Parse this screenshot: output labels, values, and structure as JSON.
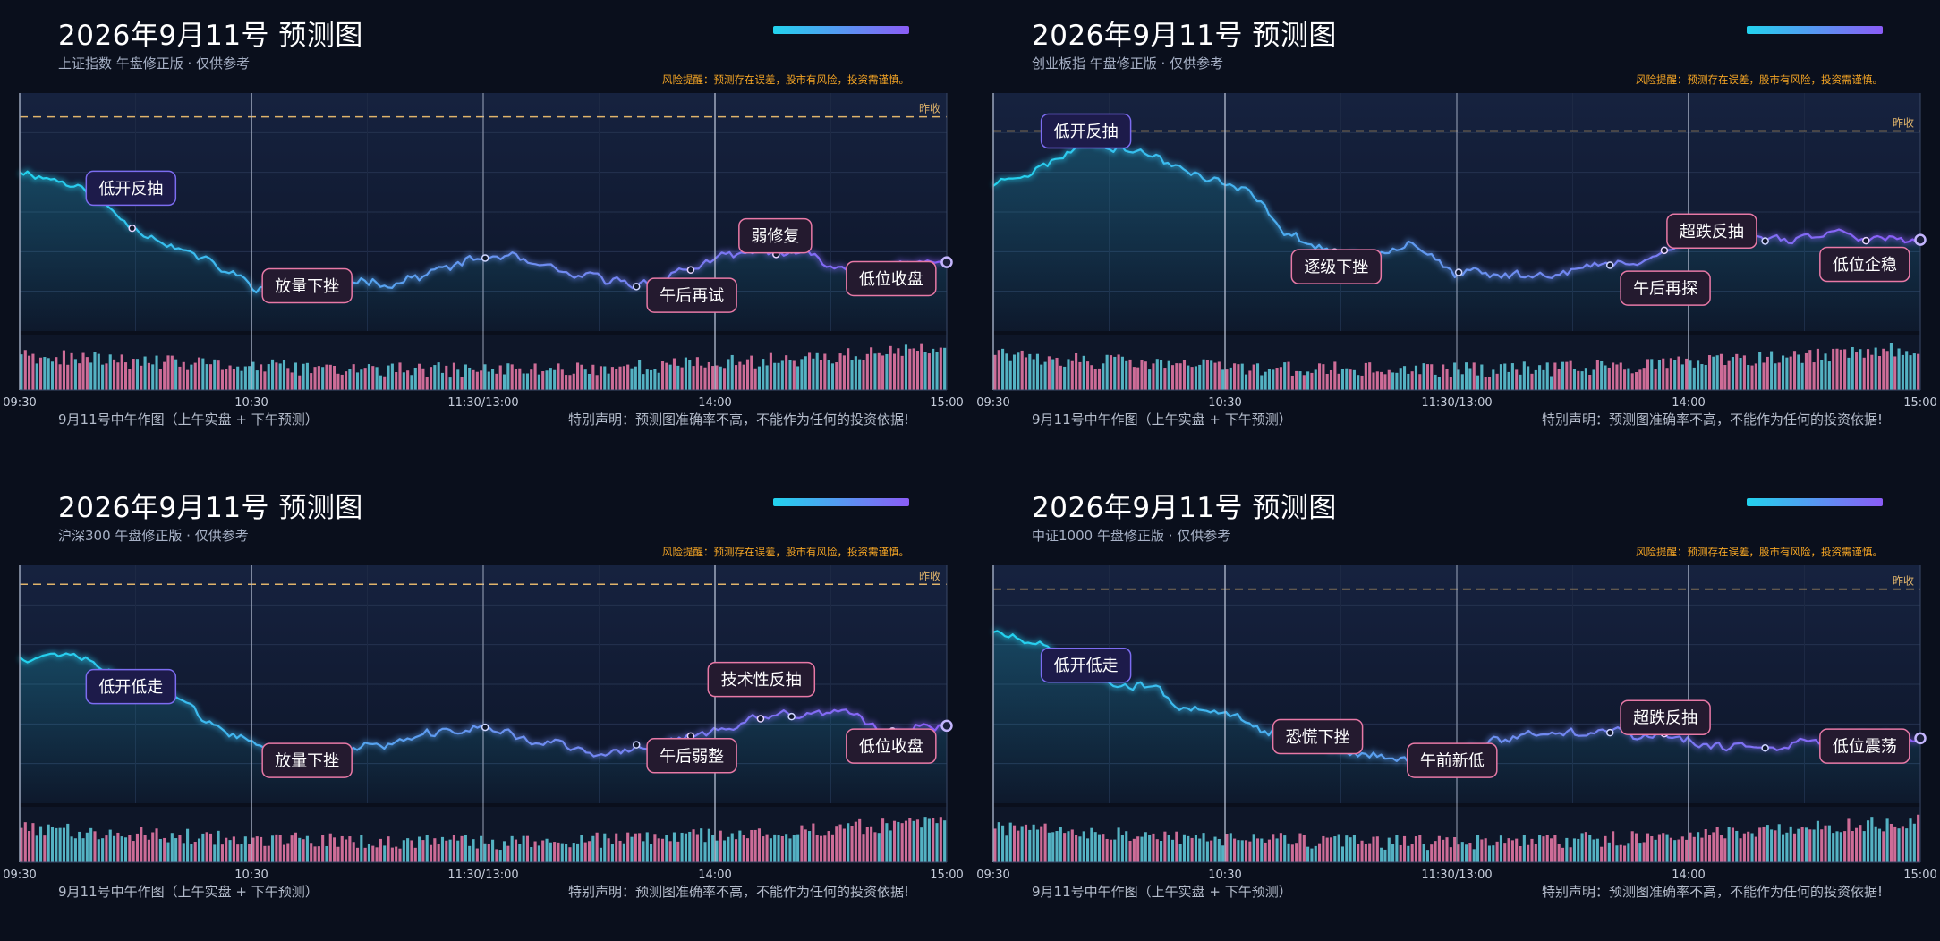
{
  "accent": "#22d3ee",
  "accent2": "#8b5cf6",
  "up_color": "#e879a6",
  "down_color": "#5ec8d8",
  "chart_data": [
    {
      "type": "line",
      "title": "2026年9月11号 预测图",
      "subtitle": "上证指数 午盘修正版 · 仅供参考",
      "risk": "风险提醒：预测存在误差，股市有风险，投资需谨慎。",
      "footer_left": "9月11号中午作图（上午实盘 + 下午预测）",
      "footer_right": "特别声明：预测图准确率不高，不能作为任何的投资依据!",
      "ref_label": "昨收",
      "x_ticks": [
        "09:30",
        "10:30",
        "11:30/13:00",
        "14:00",
        "15:00"
      ],
      "y_range": [
        0,
        100
      ],
      "ref_value": 90,
      "seed": 11,
      "anchors": [
        [
          0,
          68
        ],
        [
          0.06,
          62
        ],
        [
          0.12,
          45
        ],
        [
          0.2,
          30
        ],
        [
          0.25,
          20
        ],
        [
          0.32,
          22
        ],
        [
          0.4,
          21
        ],
        [
          0.5,
          30
        ],
        [
          0.53,
          31
        ],
        [
          0.6,
          22
        ],
        [
          0.68,
          20
        ],
        [
          0.75,
          30
        ],
        [
          0.82,
          33
        ],
        [
          0.9,
          27
        ],
        [
          1,
          29
        ]
      ],
      "annotations": [
        {
          "text": "低开反抽",
          "x": 0.12,
          "y": 60,
          "boxSide": "above",
          "type": "purple"
        },
        {
          "text": "放量下挫",
          "x": 0.31,
          "y": 19,
          "boxSide": "below",
          "type": "pink"
        },
        {
          "text": "弱修复",
          "x": 0.815,
          "y": 40,
          "boxSide": "above",
          "type": "pink"
        },
        {
          "text": "午后再试",
          "x": 0.725,
          "y": 15,
          "boxSide": "below",
          "type": "pink"
        },
        {
          "text": "低位收盘",
          "x": 0.94,
          "y": 22,
          "boxSide": "below",
          "type": "pink"
        }
      ]
    },
    {
      "type": "line",
      "title": "2026年9月11号 预测图",
      "subtitle": "创业板指 午盘修正版 · 仅供参考",
      "risk": "风险提醒：预测存在误差，股市有风险，投资需谨慎。",
      "footer_left": "9月11号中午作图（上午实盘 + 下午预测）",
      "footer_right": "特别声明：预测图准确率不高，不能作为任何的投资依据!",
      "ref_label": "昨收",
      "x_ticks": [
        "09:30",
        "10:30",
        "11:30/13:00",
        "14:00",
        "15:00"
      ],
      "y_range": [
        0,
        100
      ],
      "ref_value": 84,
      "seed": 23,
      "anchors": [
        [
          0,
          62
        ],
        [
          0.05,
          68
        ],
        [
          0.1,
          80
        ],
        [
          0.14,
          78
        ],
        [
          0.2,
          68
        ],
        [
          0.27,
          58
        ],
        [
          0.32,
          40
        ],
        [
          0.4,
          28
        ],
        [
          0.45,
          40
        ],
        [
          0.5,
          25
        ],
        [
          0.6,
          24
        ],
        [
          0.68,
          28
        ],
        [
          0.76,
          40
        ],
        [
          0.85,
          40
        ],
        [
          0.92,
          42
        ],
        [
          1,
          36
        ]
      ],
      "annotations": [
        {
          "text": "低开反抽",
          "x": 0.1,
          "y": 84,
          "boxSide": "above",
          "type": "purple"
        },
        {
          "text": "逐级下挫",
          "x": 0.37,
          "y": 27,
          "boxSide": "below",
          "type": "pink"
        },
        {
          "text": "超跌反抽",
          "x": 0.775,
          "y": 42,
          "boxSide": "above",
          "type": "pink"
        },
        {
          "text": "午后再探",
          "x": 0.725,
          "y": 18,
          "boxSide": "below",
          "type": "pink"
        },
        {
          "text": "低位企稳",
          "x": 0.94,
          "y": 28,
          "boxSide": "below",
          "type": "pink"
        }
      ]
    },
    {
      "type": "line",
      "title": "2026年9月11号 预测图",
      "subtitle": "沪深300 午盘修正版 · 仅供参考",
      "risk": "风险提醒：预测存在误差，股市有风险，投资需谨慎。",
      "footer_left": "9月11号中午作图（上午实盘 + 下午预测）",
      "footer_right": "特别声明：预测图准确率不高，不能作为任何的投资依据!",
      "ref_label": "昨收",
      "x_ticks": [
        "09:30",
        "10:30",
        "11:30/13:00",
        "14:00",
        "15:00"
      ],
      "y_range": [
        0,
        100
      ],
      "ref_value": 92,
      "seed": 37,
      "anchors": [
        [
          0,
          62
        ],
        [
          0.05,
          64
        ],
        [
          0.12,
          50
        ],
        [
          0.17,
          45
        ],
        [
          0.22,
          28
        ],
        [
          0.27,
          22
        ],
        [
          0.33,
          20
        ],
        [
          0.4,
          26
        ],
        [
          0.5,
          32
        ],
        [
          0.58,
          25
        ],
        [
          0.62,
          20
        ],
        [
          0.7,
          26
        ],
        [
          0.76,
          30
        ],
        [
          0.82,
          36
        ],
        [
          0.9,
          37
        ],
        [
          0.93,
          28
        ],
        [
          0.97,
          34
        ],
        [
          1,
          34
        ]
      ],
      "annotations": [
        {
          "text": "低开低走",
          "x": 0.12,
          "y": 49,
          "boxSide": "above",
          "type": "purple"
        },
        {
          "text": "放量下挫",
          "x": 0.31,
          "y": 18,
          "boxSide": "below",
          "type": "pink"
        },
        {
          "text": "技术性反抽",
          "x": 0.8,
          "y": 52,
          "boxSide": "above",
          "type": "pink"
        },
        {
          "text": "午后弱整",
          "x": 0.725,
          "y": 20,
          "boxSide": "below",
          "type": "pink"
        },
        {
          "text": "低位收盘",
          "x": 0.94,
          "y": 24,
          "boxSide": "below",
          "type": "pink"
        }
      ]
    },
    {
      "type": "line",
      "title": "2026年9月11号 预测图",
      "subtitle": "中证1000 午盘修正版 · 仅供参考",
      "risk": "风险提醒：预测存在误差，股市有风险，投资需谨慎。",
      "footer_left": "9月11号中午作图（上午实盘 + 下午预测）",
      "footer_right": "特别声明：预测图准确率不高，不能作为任何的投资依据!",
      "ref_label": "昨收",
      "x_ticks": [
        "09:30",
        "10:30",
        "11:30/13:00",
        "14:00",
        "15:00"
      ],
      "y_range": [
        0,
        100
      ],
      "ref_value": 90,
      "seed": 51,
      "anchors": [
        [
          0,
          72
        ],
        [
          0.05,
          65
        ],
        [
          0.1,
          55
        ],
        [
          0.16,
          50
        ],
        [
          0.24,
          38
        ],
        [
          0.3,
          30
        ],
        [
          0.38,
          20
        ],
        [
          0.45,
          18
        ],
        [
          0.52,
          25
        ],
        [
          0.6,
          30
        ],
        [
          0.68,
          30
        ],
        [
          0.74,
          28
        ],
        [
          0.8,
          24
        ],
        [
          0.87,
          26
        ],
        [
          0.93,
          27
        ],
        [
          1,
          26
        ]
      ],
      "annotations": [
        {
          "text": "低开低走",
          "x": 0.1,
          "y": 58,
          "boxSide": "above",
          "type": "purple"
        },
        {
          "text": "恐慌下挫",
          "x": 0.35,
          "y": 28,
          "boxSide": "below",
          "type": "pink"
        },
        {
          "text": "午前新低",
          "x": 0.495,
          "y": 18,
          "boxSide": "below",
          "type": "pink"
        },
        {
          "text": "超跌反抽",
          "x": 0.725,
          "y": 36,
          "boxSide": "above",
          "type": "pink"
        },
        {
          "text": "低位震荡",
          "x": 0.94,
          "y": 24,
          "boxSide": "below",
          "type": "pink"
        }
      ]
    }
  ]
}
